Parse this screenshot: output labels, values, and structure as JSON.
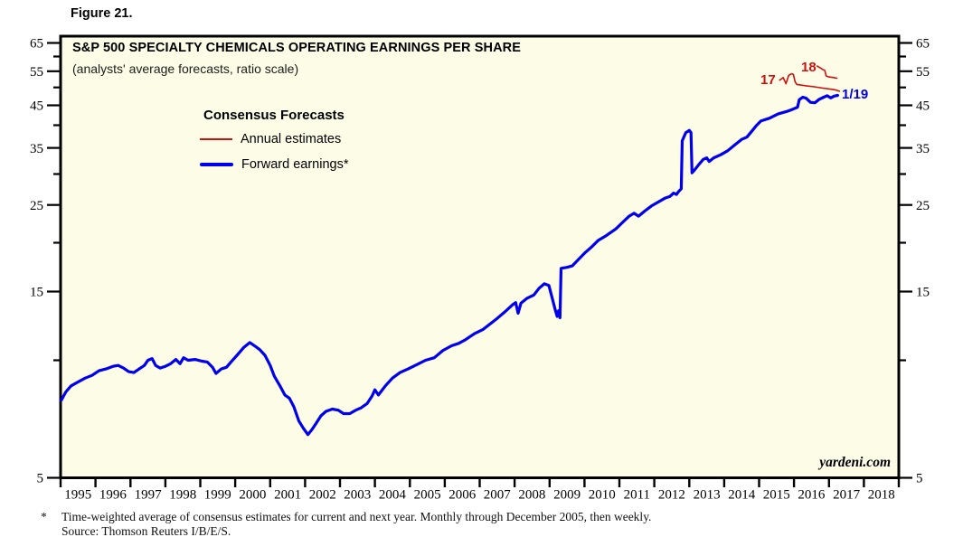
{
  "figure_label": "Figure 21.",
  "watermark": "yardeni.com",
  "footnote": {
    "marker": "*",
    "line1": "Time-weighted average of consensus estimates for current and next year. Monthly through December 2005, then weekly.",
    "line2": "Source: Thomson Reuters I/B/E/S."
  },
  "colors": {
    "plot_bg": "#FDFCE6",
    "frame": "#000000",
    "blue": "#0000EE",
    "red": "#CC1111"
  },
  "chart_data": {
    "type": "line",
    "title": "S&P 500 SPECIALTY CHEMICALS OPERATING EARNINGS PER SHARE",
    "subtitle": "(analysts' average forecasts, ratio scale)",
    "y_scale": "log (ratio scale)",
    "ylim": [
      5,
      65
    ],
    "y_major_ticks": [
      5,
      15,
      25,
      35,
      45,
      55,
      65
    ],
    "y_minor_ticks": [
      10,
      20,
      30,
      40,
      50,
      60
    ],
    "x_years": [
      1995,
      1996,
      1997,
      1998,
      1999,
      2000,
      2001,
      2002,
      2003,
      2004,
      2005,
      2006,
      2007,
      2008,
      2009,
      2010,
      2011,
      2012,
      2013,
      2014,
      2015,
      2016,
      2017,
      2018
    ],
    "grid": false,
    "legend": {
      "heading": "Consensus Forecasts",
      "position": "top-left inside plot",
      "items": [
        {
          "label": "Annual estimates",
          "color": "#CC1111"
        },
        {
          "label": "Forward earnings*",
          "color": "#0000EE"
        }
      ]
    },
    "annotations": [
      {
        "text": "17",
        "color": "#CC1111"
      },
      {
        "text": "18",
        "color": "#CC1111"
      },
      {
        "text": "1/19",
        "color": "#0000EE"
      }
    ],
    "series": [
      {
        "name": "Forward earnings",
        "color": "#0000EE",
        "width": 3.2,
        "points": [
          [
            1995.02,
            7.9
          ],
          [
            1995.15,
            8.3
          ],
          [
            1995.3,
            8.6
          ],
          [
            1995.5,
            8.8
          ],
          [
            1995.7,
            9.0
          ],
          [
            1995.9,
            9.15
          ],
          [
            1996.1,
            9.4
          ],
          [
            1996.3,
            9.5
          ],
          [
            1996.5,
            9.65
          ],
          [
            1996.65,
            9.7
          ],
          [
            1996.8,
            9.55
          ],
          [
            1996.95,
            9.35
          ],
          [
            1997.1,
            9.3
          ],
          [
            1997.25,
            9.5
          ],
          [
            1997.4,
            9.7
          ],
          [
            1997.5,
            10.0
          ],
          [
            1997.62,
            10.1
          ],
          [
            1997.72,
            9.7
          ],
          [
            1997.85,
            9.55
          ],
          [
            1998.0,
            9.65
          ],
          [
            1998.15,
            9.8
          ],
          [
            1998.3,
            10.05
          ],
          [
            1998.42,
            9.8
          ],
          [
            1998.52,
            10.15
          ],
          [
            1998.65,
            10.0
          ],
          [
            1998.85,
            10.05
          ],
          [
            1999.05,
            9.95
          ],
          [
            1999.2,
            9.9
          ],
          [
            1999.35,
            9.6
          ],
          [
            1999.45,
            9.25
          ],
          [
            1999.6,
            9.5
          ],
          [
            1999.75,
            9.6
          ],
          [
            1999.9,
            9.95
          ],
          [
            2000.05,
            10.3
          ],
          [
            2000.25,
            10.8
          ],
          [
            2000.42,
            11.1
          ],
          [
            2000.55,
            10.9
          ],
          [
            2000.7,
            10.65
          ],
          [
            2000.85,
            10.3
          ],
          [
            2001.0,
            9.7
          ],
          [
            2001.12,
            9.1
          ],
          [
            2001.28,
            8.6
          ],
          [
            2001.42,
            8.15
          ],
          [
            2001.55,
            8.0
          ],
          [
            2001.68,
            7.6
          ],
          [
            2001.82,
            7.0
          ],
          [
            2001.95,
            6.7
          ],
          [
            2002.08,
            6.45
          ],
          [
            2002.2,
            6.65
          ],
          [
            2002.32,
            6.9
          ],
          [
            2002.45,
            7.2
          ],
          [
            2002.6,
            7.4
          ],
          [
            2002.78,
            7.5
          ],
          [
            2002.95,
            7.45
          ],
          [
            2003.1,
            7.3
          ],
          [
            2003.28,
            7.3
          ],
          [
            2003.45,
            7.45
          ],
          [
            2003.6,
            7.55
          ],
          [
            2003.78,
            7.75
          ],
          [
            2003.92,
            8.1
          ],
          [
            2004.0,
            8.4
          ],
          [
            2004.1,
            8.15
          ],
          [
            2004.3,
            8.6
          ],
          [
            2004.5,
            9.0
          ],
          [
            2004.72,
            9.3
          ],
          [
            2004.95,
            9.5
          ],
          [
            2005.2,
            9.75
          ],
          [
            2005.45,
            10.0
          ],
          [
            2005.7,
            10.15
          ],
          [
            2005.95,
            10.6
          ],
          [
            2006.2,
            10.9
          ],
          [
            2006.4,
            11.05
          ],
          [
            2006.6,
            11.3
          ],
          [
            2006.85,
            11.7
          ],
          [
            2007.1,
            12.0
          ],
          [
            2007.3,
            12.4
          ],
          [
            2007.5,
            12.8
          ],
          [
            2007.72,
            13.3
          ],
          [
            2007.95,
            13.9
          ],
          [
            2008.03,
            14.05
          ],
          [
            2008.1,
            13.2
          ],
          [
            2008.18,
            14.0
          ],
          [
            2008.35,
            14.4
          ],
          [
            2008.55,
            14.7
          ],
          [
            2008.7,
            15.3
          ],
          [
            2008.85,
            15.7
          ],
          [
            2008.98,
            15.55
          ],
          [
            2009.08,
            14.4
          ],
          [
            2009.16,
            13.5
          ],
          [
            2009.22,
            12.95
          ],
          [
            2009.26,
            13.4
          ],
          [
            2009.3,
            12.85
          ],
          [
            2009.33,
            17.2
          ],
          [
            2009.5,
            17.3
          ],
          [
            2009.65,
            17.45
          ],
          [
            2009.82,
            18.1
          ],
          [
            2010.0,
            18.8
          ],
          [
            2010.2,
            19.5
          ],
          [
            2010.4,
            20.3
          ],
          [
            2010.62,
            20.85
          ],
          [
            2010.9,
            21.7
          ],
          [
            2011.1,
            22.6
          ],
          [
            2011.28,
            23.4
          ],
          [
            2011.42,
            23.8
          ],
          [
            2011.55,
            23.4
          ],
          [
            2011.72,
            24.1
          ],
          [
            2011.92,
            24.85
          ],
          [
            2012.1,
            25.4
          ],
          [
            2012.3,
            26.0
          ],
          [
            2012.45,
            26.3
          ],
          [
            2012.55,
            26.8
          ],
          [
            2012.63,
            26.6
          ],
          [
            2012.7,
            27.1
          ],
          [
            2012.77,
            27.5
          ],
          [
            2012.8,
            36.5
          ],
          [
            2012.9,
            38.3
          ],
          [
            2013.0,
            38.8
          ],
          [
            2013.05,
            38.3
          ],
          [
            2013.08,
            30.2
          ],
          [
            2013.15,
            30.7
          ],
          [
            2013.27,
            31.7
          ],
          [
            2013.4,
            32.7
          ],
          [
            2013.5,
            33.0
          ],
          [
            2013.57,
            32.3
          ],
          [
            2013.7,
            33.0
          ],
          [
            2013.9,
            33.6
          ],
          [
            2014.1,
            34.4
          ],
          [
            2014.3,
            35.6
          ],
          [
            2014.5,
            36.8
          ],
          [
            2014.65,
            37.3
          ],
          [
            2014.8,
            38.7
          ],
          [
            2014.92,
            39.9
          ],
          [
            2015.05,
            41.0
          ],
          [
            2015.3,
            41.7
          ],
          [
            2015.55,
            42.8
          ],
          [
            2015.8,
            43.4
          ],
          [
            2015.97,
            44.0
          ],
          [
            2016.1,
            44.5
          ],
          [
            2016.15,
            46.5
          ],
          [
            2016.25,
            47.2
          ],
          [
            2016.35,
            46.9
          ],
          [
            2016.47,
            45.8
          ],
          [
            2016.6,
            45.7
          ],
          [
            2016.72,
            46.6
          ],
          [
            2016.85,
            47.2
          ],
          [
            2016.95,
            47.6
          ],
          [
            2017.05,
            47.0
          ],
          [
            2017.15,
            47.5
          ],
          [
            2017.25,
            47.7
          ]
        ]
      },
      {
        "name": "Annual estimate 2017",
        "color": "#CC1111",
        "width": 1.6,
        "points": [
          [
            2015.59,
            52.2
          ],
          [
            2015.69,
            53.0
          ],
          [
            2015.77,
            51.1
          ],
          [
            2015.85,
            53.7
          ],
          [
            2015.93,
            54.2
          ],
          [
            2015.98,
            54.0
          ],
          [
            2016.03,
            51.7
          ],
          [
            2016.08,
            50.9
          ],
          [
            2016.32,
            50.5
          ],
          [
            2016.58,
            50.2
          ],
          [
            2016.83,
            49.8
          ],
          [
            2017.04,
            49.5
          ],
          [
            2017.17,
            49.3
          ],
          [
            2017.3,
            48.9
          ]
        ]
      },
      {
        "name": "Annual estimate 2018",
        "color": "#CC1111",
        "width": 1.6,
        "points": [
          [
            2016.66,
            56.7
          ],
          [
            2016.74,
            56.2
          ],
          [
            2016.82,
            55.6
          ],
          [
            2016.88,
            55.3
          ],
          [
            2016.92,
            53.5
          ],
          [
            2017.0,
            53.2
          ],
          [
            2017.13,
            53.0
          ],
          [
            2017.23,
            52.8
          ]
        ]
      }
    ]
  }
}
